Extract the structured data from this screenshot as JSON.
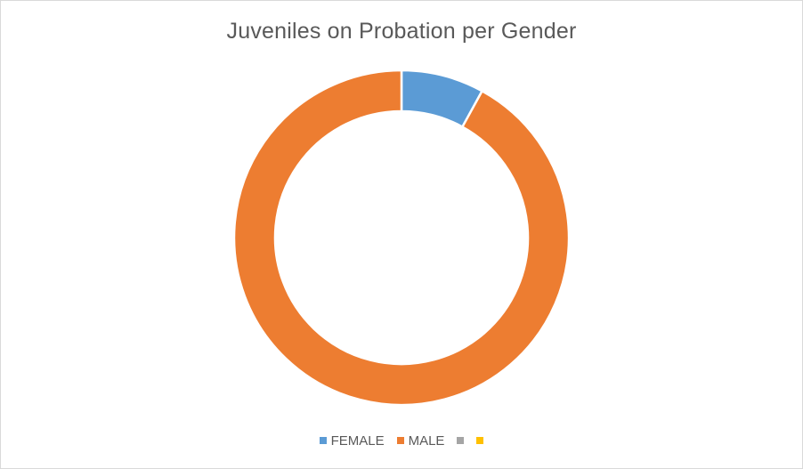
{
  "chart_data": {
    "type": "pie",
    "variant": "doughnut",
    "title": "Juveniles on Probation per Gender",
    "slices": [
      {
        "label": "FEMALE",
        "value": 8,
        "color": "#5B9BD5"
      },
      {
        "label": "MALE",
        "value": 92,
        "color": "#ED7D31"
      }
    ],
    "legend": {
      "placement": "bottom",
      "entries": [
        {
          "label": "FEMALE",
          "color": "#5B9BD5"
        },
        {
          "label": "MALE",
          "color": "#ED7D31"
        },
        {
          "label": "",
          "color": "#A5A5A5"
        },
        {
          "label": "",
          "color": "#FFC000"
        }
      ]
    }
  }
}
